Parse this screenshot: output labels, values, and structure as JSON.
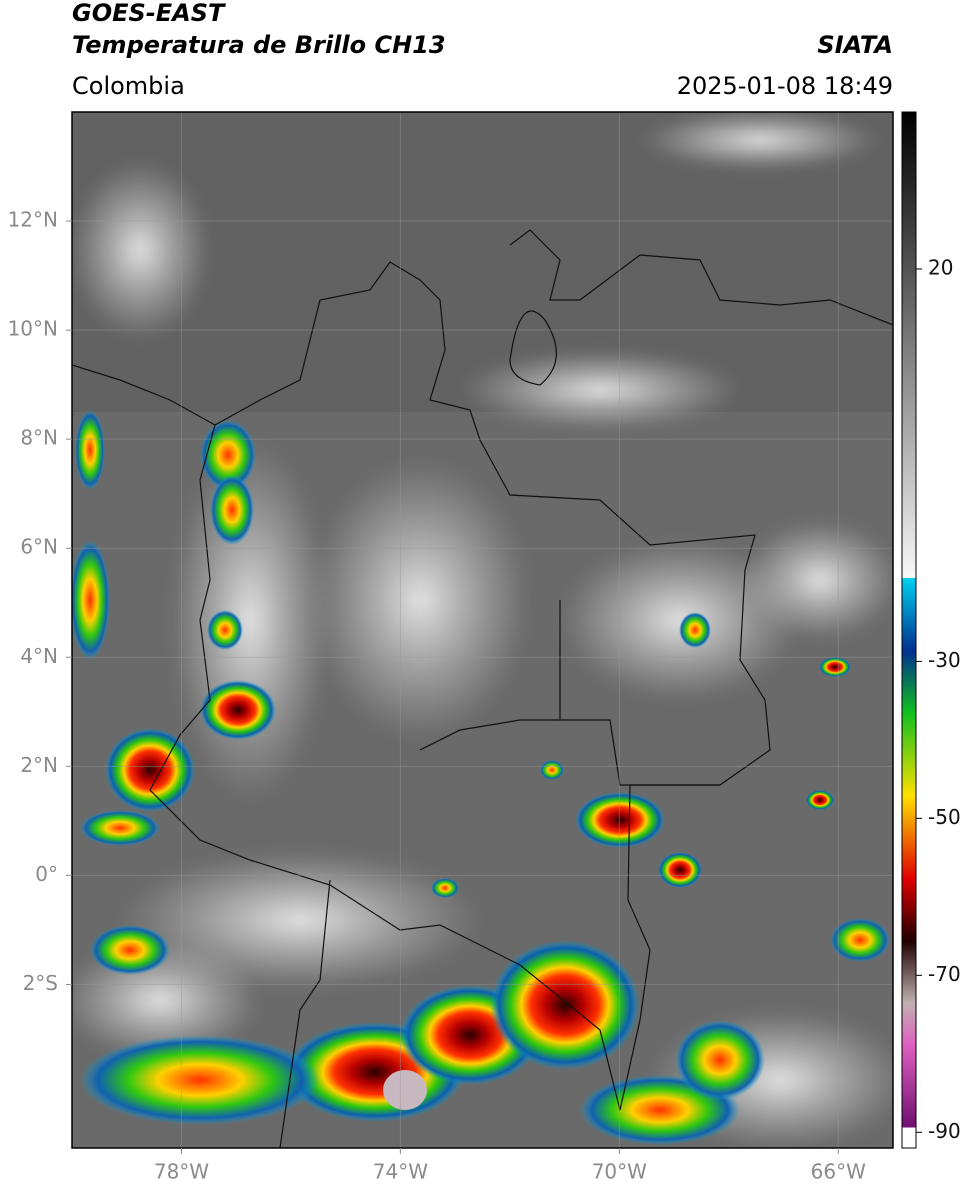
{
  "header": {
    "satellite": "GOES-EAST",
    "product": "Temperatura de Brillo CH13",
    "source": "SIATA",
    "region": "Colombia",
    "datetime": "2025-01-08 18:49"
  },
  "map": {
    "xlim": [
      -80,
      -65
    ],
    "ylim": [
      -5,
      14
    ],
    "xticks": [
      {
        "value": -78,
        "label": "78°W"
      },
      {
        "value": -74,
        "label": "74°W"
      },
      {
        "value": -70,
        "label": "70°W"
      },
      {
        "value": -66,
        "label": "66°W"
      }
    ],
    "yticks": [
      {
        "value": 12,
        "label": "12°N"
      },
      {
        "value": 10,
        "label": "10°N"
      },
      {
        "value": 8,
        "label": "8°N"
      },
      {
        "value": 6,
        "label": "6°N"
      },
      {
        "value": 4,
        "label": "4°N"
      },
      {
        "value": 2,
        "label": "2°N"
      },
      {
        "value": 0,
        "label": "0°"
      },
      {
        "value": -2,
        "label": "2°S"
      }
    ],
    "grid": true
  },
  "colorbar": {
    "lim": [
      -92,
      40
    ],
    "ticks": [
      20,
      -30,
      -50,
      -70,
      -90
    ]
  }
}
